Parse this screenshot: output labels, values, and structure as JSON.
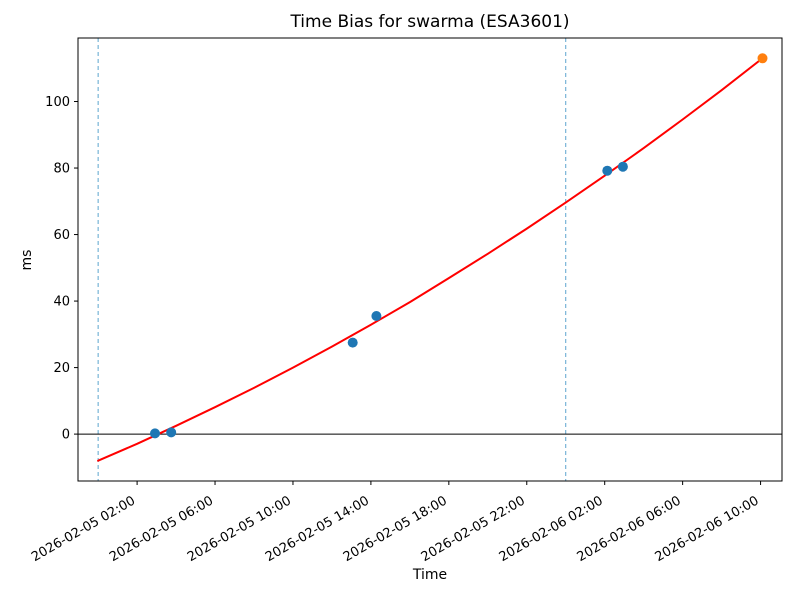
{
  "figure": {
    "background": "#ffffff"
  },
  "chart_data": {
    "type": "scatter",
    "title": "Time Bias for swarma (ESA3601)",
    "xlabel": "Time",
    "ylabel": "ms",
    "x_tick_labels": [
      "2026-02-05 02:00",
      "2026-02-05 06:00",
      "2026-02-05 10:00",
      "2026-02-05 14:00",
      "2026-02-05 18:00",
      "2026-02-05 22:00",
      "2026-02-06 02:00",
      "2026-02-06 06:00",
      "2026-02-06 10:00"
    ],
    "y_ticks": [
      0,
      20,
      40,
      60,
      80,
      100
    ],
    "xlim": [
      "2026-02-04 22:58",
      "2026-02-06 11:06"
    ],
    "ylim": [
      -14.1,
      119.1
    ],
    "grid": false,
    "legend": "none",
    "frame_color": "#000000",
    "series": [
      {
        "name": "fit-curve",
        "type": "line",
        "color": "#ff0000",
        "width": 2,
        "points": [
          [
            "2026-02-05 00:00",
            -8.0
          ],
          [
            "2026-02-05 02:00",
            -2.9
          ],
          [
            "2026-02-05 04:00",
            2.5
          ],
          [
            "2026-02-05 06:00",
            8.1
          ],
          [
            "2026-02-05 08:00",
            13.9
          ],
          [
            "2026-02-05 10:00",
            20.0
          ],
          [
            "2026-02-05 12:00",
            26.3
          ],
          [
            "2026-02-05 14:00",
            32.9
          ],
          [
            "2026-02-05 16:00",
            39.7
          ],
          [
            "2026-02-05 18:00",
            46.9
          ],
          [
            "2026-02-05 20:00",
            54.2
          ],
          [
            "2026-02-05 22:00",
            61.8
          ],
          [
            "2026-02-06 00:00",
            69.6
          ],
          [
            "2026-02-06 02:00",
            77.7
          ],
          [
            "2026-02-06 04:00",
            86.0
          ],
          [
            "2026-02-06 06:00",
            94.6
          ],
          [
            "2026-02-06 08:00",
            103.4
          ],
          [
            "2026-02-06 10:06",
            113.0
          ]
        ]
      },
      {
        "name": "observations",
        "type": "scatter",
        "color": "#1f77b4",
        "marker_radius": 5,
        "points": [
          [
            "2026-02-05 02:55",
            0.2
          ],
          [
            "2026-02-05 03:45",
            0.5
          ],
          [
            "2026-02-05 13:04",
            27.5
          ],
          [
            "2026-02-05 14:17",
            35.5
          ],
          [
            "2026-02-06 02:08",
            79.2
          ],
          [
            "2026-02-06 02:56",
            80.4
          ]
        ]
      },
      {
        "name": "latest-observation",
        "type": "scatter",
        "color": "#ff7f0e",
        "marker_radius": 5,
        "points": [
          [
            "2026-02-06 10:06",
            113.0
          ]
        ]
      }
    ],
    "vlines": [
      {
        "x": "2026-02-05 00:00",
        "color": "#5ca4cf",
        "style": "dashed"
      },
      {
        "x": "2026-02-06 00:00",
        "color": "#5ca4cf",
        "style": "dashed"
      }
    ],
    "hlines": [
      {
        "y": 0,
        "color": "#000000",
        "style": "solid"
      }
    ]
  }
}
